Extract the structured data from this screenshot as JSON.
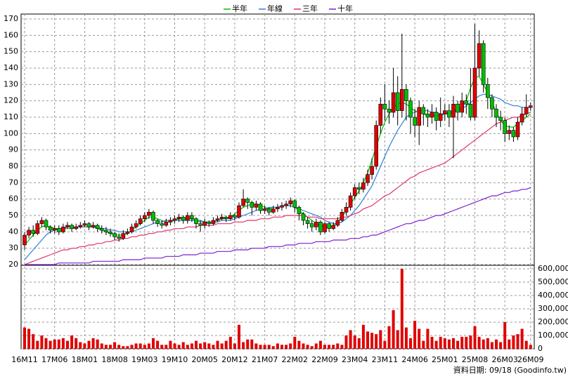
{
  "chart_data": [
    {
      "type": "candlestick",
      "categories": [
        "16M11",
        null,
        null,
        null,
        null,
        null,
        null,
        "17M06",
        null,
        null,
        null,
        null,
        null,
        null,
        "18M01",
        null,
        null,
        null,
        null,
        null,
        null,
        "18M08",
        null,
        null,
        null,
        null,
        null,
        null,
        "19M03",
        null,
        null,
        null,
        null,
        null,
        null,
        "19M10",
        null,
        null,
        null,
        null,
        null,
        null,
        "20M05",
        null,
        null,
        null,
        null,
        null,
        null,
        "20M12",
        null,
        null,
        null,
        null,
        null,
        null,
        "21M07",
        null,
        null,
        null,
        null,
        null,
        null,
        "22M02",
        null,
        null,
        null,
        null,
        null,
        null,
        "22M09",
        null,
        null,
        null,
        null,
        null,
        null,
        "23M04",
        null,
        null,
        null,
        null,
        null,
        null,
        "23M11",
        null,
        null,
        null,
        null,
        null,
        null,
        "24M06",
        null,
        null,
        null,
        null,
        null,
        null,
        "25M01",
        null,
        null,
        null,
        null,
        null,
        null,
        "25M08",
        null,
        null,
        null,
        null,
        null,
        null,
        "26M03",
        null,
        null,
        null,
        null,
        null,
        "26M09"
      ],
      "open": [
        32,
        38,
        41,
        39,
        45,
        47,
        43,
        41,
        42,
        40,
        43,
        44,
        42,
        43,
        44,
        45,
        43,
        44,
        42,
        41,
        40,
        39,
        37,
        36,
        39,
        40,
        43,
        45,
        48,
        50,
        52,
        47,
        45,
        44,
        46,
        47,
        48,
        49,
        47,
        50,
        48,
        45,
        44,
        46,
        45,
        47,
        48,
        49,
        48,
        50,
        49,
        56,
        60,
        58,
        55,
        57,
        53,
        54,
        52,
        54,
        55,
        56,
        57,
        59,
        55,
        51,
        47,
        45,
        43,
        46,
        40,
        45,
        42,
        44,
        47,
        52,
        55,
        62,
        67,
        66,
        70,
        75,
        80,
        105,
        118,
        115,
        113,
        125,
        114,
        127,
        120,
        110,
        105,
        116,
        112,
        110,
        113,
        108,
        112,
        114,
        110,
        118,
        113,
        120,
        118,
        110,
        140,
        155,
        130,
        122,
        115,
        110,
        108,
        100,
        102,
        98,
        107,
        112,
        116
      ],
      "high": [
        40,
        43,
        44,
        47,
        49,
        48,
        44,
        44,
        44,
        45,
        46,
        45,
        45,
        46,
        47,
        46,
        46,
        45,
        44,
        43,
        42,
        40,
        39,
        41,
        42,
        45,
        47,
        50,
        52,
        54,
        53,
        48,
        47,
        48,
        49,
        50,
        51,
        50,
        52,
        52,
        49,
        47,
        48,
        47,
        49,
        50,
        51,
        50,
        52,
        51,
        58,
        66,
        61,
        59,
        59,
        58,
        56,
        55,
        56,
        57,
        58,
        59,
        61,
        60,
        56,
        52,
        49,
        47,
        48,
        47,
        46,
        46,
        46,
        49,
        54,
        58,
        64,
        69,
        70,
        73,
        78,
        85,
        108,
        122,
        130,
        120,
        140,
        135,
        161,
        130,
        122,
        115,
        120,
        118,
        115,
        118,
        116,
        122,
        118,
        118,
        123,
        120,
        125,
        124,
        140,
        167,
        163,
        157,
        134,
        124,
        118,
        114,
        110,
        105,
        104,
        110,
        116,
        124,
        119
      ],
      "low": [
        29,
        36,
        37,
        38,
        43,
        41,
        39,
        39,
        38,
        39,
        42,
        40,
        41,
        42,
        43,
        41,
        42,
        40,
        39,
        38,
        37,
        35,
        34,
        35,
        38,
        39,
        42,
        44,
        46,
        48,
        45,
        43,
        42,
        43,
        44,
        45,
        46,
        45,
        45,
        46,
        42,
        40,
        42,
        43,
        44,
        46,
        47,
        46,
        47,
        47,
        48,
        55,
        54,
        50,
        53,
        51,
        51,
        50,
        51,
        52,
        53,
        54,
        55,
        52,
        47,
        44,
        42,
        40,
        41,
        38,
        39,
        40,
        41,
        43,
        46,
        50,
        53,
        60,
        63,
        64,
        68,
        72,
        78,
        100,
        108,
        106,
        110,
        105,
        110,
        108,
        100,
        98,
        93,
        105,
        104,
        106,
        102,
        104,
        108,
        104,
        85,
        108,
        110,
        112,
        108,
        108,
        135,
        125,
        115,
        110,
        104,
        102,
        95,
        96,
        95,
        96,
        105,
        110,
        114
      ],
      "close": [
        38,
        41,
        39,
        45,
        47,
        43,
        41,
        42,
        40,
        43,
        44,
        42,
        43,
        44,
        45,
        43,
        44,
        42,
        41,
        40,
        39,
        37,
        36,
        39,
        40,
        43,
        45,
        48,
        50,
        52,
        47,
        45,
        44,
        46,
        47,
        48,
        49,
        47,
        50,
        48,
        45,
        44,
        46,
        45,
        47,
        48,
        49,
        48,
        50,
        49,
        56,
        60,
        58,
        55,
        57,
        53,
        54,
        52,
        54,
        55,
        56,
        57,
        59,
        55,
        51,
        47,
        45,
        43,
        46,
        40,
        45,
        42,
        44,
        47,
        52,
        55,
        62,
        67,
        66,
        70,
        75,
        80,
        105,
        118,
        115,
        113,
        125,
        114,
        127,
        120,
        110,
        105,
        116,
        112,
        110,
        113,
        108,
        112,
        114,
        110,
        118,
        113,
        120,
        118,
        110,
        140,
        155,
        130,
        122,
        115,
        110,
        108,
        100,
        102,
        98,
        107,
        112,
        116,
        117
      ],
      "up_color": "#e00000",
      "down_color": "#00c000",
      "series": [
        {
          "name": "半年",
          "color": "#00c000",
          "values": [
            32,
            35,
            38,
            41,
            43,
            44,
            43,
            42,
            42,
            42,
            42,
            42,
            43,
            43,
            43,
            43,
            43,
            42,
            41,
            40,
            39,
            38,
            38,
            38,
            39,
            41,
            43,
            45,
            47,
            49,
            49,
            48,
            47,
            46,
            46,
            47,
            48,
            48,
            48,
            48,
            47,
            46,
            46,
            46,
            46,
            47,
            48,
            48,
            49,
            51,
            53,
            55,
            56,
            57,
            57,
            56,
            55,
            54,
            55,
            55,
            56,
            56,
            56,
            55,
            53,
            51,
            49,
            47,
            45,
            44,
            43,
            43,
            44,
            46,
            49,
            53,
            57,
            61,
            65,
            70,
            76,
            84,
            92,
            100,
            107,
            112,
            116,
            118,
            119,
            118,
            116,
            114,
            113,
            112,
            111,
            111,
            111,
            111,
            112,
            113,
            114,
            115,
            116,
            120,
            128,
            134,
            135,
            130,
            125,
            119,
            113,
            108,
            105,
            104,
            104,
            106,
            108,
            110,
            112
          ]
        },
        {
          "name": "年線",
          "color": "#2f7fd8",
          "values": [
            23,
            26,
            29,
            32,
            35,
            38,
            40,
            41,
            42,
            42,
            43,
            43,
            43,
            43,
            43,
            43,
            43,
            43,
            42,
            42,
            41,
            41,
            40,
            40,
            40,
            40,
            41,
            42,
            43,
            44,
            45,
            46,
            46,
            47,
            47,
            47,
            47,
            47,
            47,
            47,
            47,
            47,
            46,
            46,
            46,
            46,
            47,
            47,
            47,
            48,
            49,
            50,
            51,
            52,
            53,
            54,
            54,
            55,
            55,
            55,
            56,
            56,
            56,
            55,
            54,
            53,
            52,
            51,
            50,
            49,
            47,
            46,
            45,
            45,
            46,
            48,
            50,
            53,
            56,
            60,
            64,
            68,
            74,
            80,
            86,
            92,
            97,
            102,
            106,
            110,
            112,
            113,
            114,
            114,
            114,
            113,
            113,
            112,
            112,
            112,
            113,
            114,
            115,
            117,
            119,
            121,
            123,
            124,
            124,
            123,
            122,
            121,
            119,
            118,
            117,
            117,
            116,
            116,
            116
          ]
        },
        {
          "name": "三年",
          "color": "#e0306a",
          "values": [
            20,
            21,
            22,
            23,
            24,
            25,
            26,
            27,
            28,
            29,
            29,
            30,
            30,
            31,
            31,
            32,
            32,
            33,
            33,
            34,
            34,
            35,
            35,
            36,
            36,
            37,
            37,
            38,
            38,
            39,
            39,
            40,
            40,
            41,
            41,
            42,
            42,
            42,
            43,
            43,
            43,
            44,
            44,
            44,
            44,
            45,
            45,
            45,
            45,
            46,
            46,
            46,
            47,
            47,
            47,
            48,
            48,
            48,
            49,
            49,
            49,
            50,
            50,
            50,
            50,
            50,
            49,
            49,
            49,
            48,
            48,
            48,
            48,
            48,
            49,
            49,
            50,
            51,
            52,
            54,
            55,
            56,
            58,
            60,
            62,
            63,
            65,
            67,
            69,
            71,
            73,
            74,
            76,
            77,
            78,
            79,
            80,
            81,
            82,
            84,
            86,
            88,
            90,
            92,
            94,
            96,
            98,
            100,
            102,
            104,
            106,
            107,
            108,
            109,
            110,
            110,
            111,
            112,
            113
          ]
        },
        {
          "name": "十年",
          "color": "#7a1fd0",
          "values": [
            20,
            20,
            20,
            20,
            20,
            20,
            20,
            20,
            21,
            21,
            21,
            21,
            21,
            21,
            21,
            21,
            22,
            22,
            22,
            22,
            22,
            22,
            22,
            23,
            23,
            23,
            23,
            23,
            24,
            24,
            24,
            24,
            24,
            25,
            25,
            25,
            25,
            26,
            26,
            26,
            26,
            27,
            27,
            27,
            27,
            28,
            28,
            28,
            28,
            29,
            29,
            29,
            29,
            30,
            30,
            30,
            30,
            31,
            31,
            31,
            31,
            32,
            32,
            32,
            33,
            33,
            33,
            33,
            34,
            34,
            34,
            34,
            35,
            35,
            35,
            35,
            36,
            36,
            36,
            37,
            37,
            38,
            38,
            39,
            40,
            41,
            42,
            43,
            44,
            45,
            45,
            46,
            47,
            47,
            48,
            49,
            50,
            50,
            51,
            52,
            53,
            54,
            55,
            56,
            57,
            58,
            59,
            60,
            61,
            62,
            62,
            63,
            64,
            64,
            65,
            65,
            66,
            66,
            67
          ]
        }
      ],
      "ylim": [
        20,
        170
      ],
      "yticks": [
        20,
        30,
        40,
        50,
        60,
        70,
        80,
        90,
        100,
        110,
        120,
        130,
        140,
        150,
        160,
        170
      ],
      "grid": true,
      "legend": "top",
      "footer": "資料日期: 09/18 (Goodinfo.tw)"
    },
    {
      "type": "bar",
      "color": "#e00000",
      "values": [
        160000,
        150000,
        110000,
        60000,
        100000,
        80000,
        60000,
        70000,
        70000,
        80000,
        60000,
        100000,
        80000,
        50000,
        40000,
        60000,
        80000,
        70000,
        40000,
        30000,
        30000,
        50000,
        30000,
        20000,
        20000,
        30000,
        40000,
        40000,
        30000,
        40000,
        80000,
        60000,
        30000,
        30000,
        60000,
        40000,
        30000,
        50000,
        30000,
        40000,
        60000,
        40000,
        50000,
        40000,
        30000,
        60000,
        40000,
        60000,
        90000,
        40000,
        180000,
        50000,
        70000,
        70000,
        40000,
        30000,
        30000,
        30000,
        20000,
        40000,
        30000,
        30000,
        40000,
        90000,
        60000,
        40000,
        30000,
        20000,
        40000,
        60000,
        30000,
        30000,
        30000,
        40000,
        30000,
        100000,
        140000,
        100000,
        80000,
        180000,
        130000,
        120000,
        110000,
        140000,
        60000,
        170000,
        290000,
        140000,
        600000,
        160000,
        80000,
        210000,
        150000,
        60000,
        150000,
        90000,
        60000,
        90000,
        80000,
        70000,
        80000,
        60000,
        90000,
        90000,
        100000,
        170000,
        90000,
        70000,
        80000,
        50000,
        70000,
        50000,
        200000,
        70000,
        100000,
        110000,
        150000,
        60000,
        30000
      ],
      "ylim": [
        0,
        600000
      ],
      "yticks": [
        0,
        {
          "value": 100000,
          "label": "100,000"
        },
        {
          "value": 200000,
          "label": "200,000"
        },
        {
          "value": 300000,
          "label": "300,000"
        },
        {
          "value": 400000,
          "label": "400,000"
        },
        {
          "value": 500000,
          "label": "500,000"
        },
        {
          "value": 600000,
          "label": "600,000"
        }
      ]
    }
  ]
}
